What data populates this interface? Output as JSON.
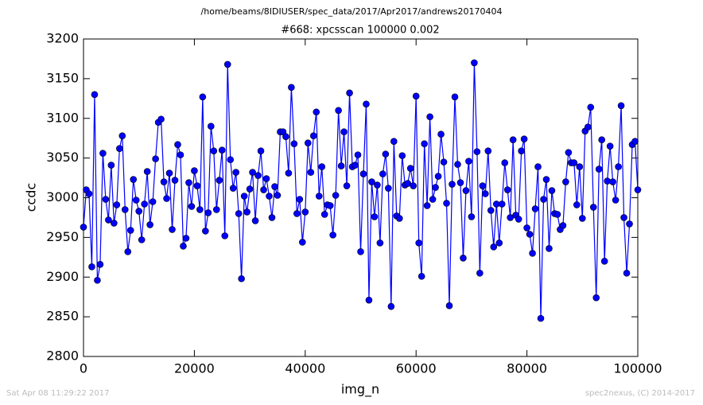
{
  "chart_data": {
    "type": "line",
    "suptitle": "/home/beams/8IDIUSER/spec_data/2017/Apr2017/andrews20170404",
    "title": "#668: xpcsscan 100000 0.002",
    "xlabel": "img_n",
    "ylabel": "ccdc",
    "footer_left": "Sat Apr 08 11:29:22 2017",
    "footer_right": "spec2nexus, (C) 2014-2017",
    "xlim": [
      0,
      100000
    ],
    "ylim": [
      2800,
      3200
    ],
    "xticks": [
      0,
      20000,
      40000,
      60000,
      80000,
      100000
    ],
    "yticks": [
      2800,
      2850,
      2900,
      2950,
      3000,
      3050,
      3100,
      3150,
      3200
    ],
    "grid": false,
    "x": [
      0,
      500,
      1000,
      1500,
      2000,
      2500,
      3000,
      3500,
      4000,
      4500,
      5000,
      5500,
      6000,
      6500,
      7000,
      7500,
      8000,
      8500,
      9000,
      9500,
      10000,
      10500,
      11000,
      11500,
      12000,
      12500,
      13000,
      13500,
      14000,
      14500,
      15000,
      15500,
      16000,
      16500,
      17000,
      17500,
      18000,
      18500,
      19000,
      19500,
      20000,
      20500,
      21000,
      21500,
      22000,
      22500,
      23000,
      23500,
      24000,
      24500,
      25000,
      25500,
      26000,
      26500,
      27000,
      27500,
      28000,
      28500,
      29000,
      29500,
      30000,
      30500,
      31000,
      31500,
      32000,
      32500,
      33000,
      33500,
      34000,
      34500,
      35000,
      35500,
      36000,
      36500,
      37000,
      37500,
      38000,
      38500,
      39000,
      39500,
      40000,
      40500,
      41000,
      41500,
      42000,
      42500,
      43000,
      43500,
      44000,
      44500,
      45000,
      45500,
      46000,
      46500,
      47000,
      47500,
      48000,
      48500,
      49000,
      49500,
      50000,
      50500,
      51000,
      51500,
      52000,
      52500,
      53000,
      53500,
      54000,
      54500,
      55000,
      55500,
      56000,
      56500,
      57000,
      57500,
      58000,
      58500,
      59000,
      59500,
      60000,
      60500,
      61000,
      61500,
      62000,
      62500,
      63000,
      63500,
      64000,
      64500,
      65000,
      65500,
      66000,
      66500,
      67000,
      67500,
      68000,
      68500,
      69000,
      69500,
      70000,
      70500,
      71000,
      71500,
      72000,
      72500,
      73000,
      73500,
      74000,
      74500,
      75000,
      75500,
      76000,
      76500,
      77000,
      77500,
      78000,
      78500,
      79000,
      79500,
      80000,
      80500,
      81000,
      81500,
      82000,
      82500,
      83000,
      83500,
      84000,
      84500,
      85000,
      85500,
      86000,
      86500,
      87000,
      87500,
      88000,
      88500,
      89000,
      89500,
      90000,
      90500,
      91000,
      91500,
      92000,
      92500,
      93000,
      93500,
      94000,
      94500,
      95000,
      95500,
      96000,
      96500,
      97000,
      97500,
      98000,
      98500,
      99000,
      99500,
      100000
    ],
    "series": [
      {
        "name": "ccdc",
        "color": "#0000ff",
        "values": [
          2963,
          3010,
          3005,
          2913,
          3130,
          2896,
          2916,
          3056,
          2998,
          2972,
          3041,
          2968,
          2991,
          3062,
          3078,
          2985,
          2932,
          2959,
          3023,
          2997,
          2983,
          2947,
          2992,
          3033,
          2966,
          2995,
          3049,
          3095,
          3099,
          3020,
          2999,
          3031,
          2960,
          3022,
          3067,
          3054,
          2939,
          2949,
          3019,
          2989,
          3034,
          3015,
          2985,
          3127,
          2958,
          2981,
          3090,
          3059,
          2985,
          3022,
          3060,
          2952,
          3168,
          3048,
          3012,
          3032,
          2980,
          2898,
          3002,
          2982,
          3011,
          3032,
          2971,
          3028,
          3059,
          3010,
          3024,
          3002,
          2975,
          3014,
          3003,
          3083,
          3083,
          3077,
          3031,
          3139,
          3068,
          2980,
          2998,
          2944,
          2982,
          3069,
          3032,
          3078,
          3108,
          3002,
          3039,
          2979,
          2991,
          2990,
          2953,
          3003,
          3110,
          3040,
          3083,
          3015,
          3132,
          3039,
          3041,
          3054,
          2932,
          3030,
          3118,
          2871,
          3020,
          2976,
          3016,
          2943,
          3030,
          3055,
          3012,
          2863,
          3071,
          2977,
          2974,
          3053,
          3016,
          3018,
          3037,
          3015,
          3128,
          2943,
          2901,
          3068,
          2990,
          3102,
          2998,
          3013,
          3027,
          3080,
          3045,
          2993,
          2864,
          3017,
          3127,
          3042,
          3019,
          2924,
          3009,
          3046,
          2976,
          3170,
          3058,
          2905,
          3015,
          3005,
          3059,
          2984,
          2938,
          2992,
          2943,
          2992,
          3044,
          3010,
          2975,
          3073,
          2978,
          2973,
          3059,
          3074,
          2962,
          2954,
          2930,
          2986,
          3039,
          2848,
          2998,
          3023,
          2936,
          3009,
          2980,
          2979,
          2960,
          2965,
          3020,
          3057,
          3044,
          3044,
          2991,
          3039,
          2974,
          3084,
          3089,
          3114,
          2988,
          2874,
          3036,
          3073,
          2920,
          3021,
          3065,
          3020,
          2997,
          3039,
          3116,
          2975,
          2905,
          2967,
          3067,
          3071,
          3010
        ]
      }
    ]
  }
}
